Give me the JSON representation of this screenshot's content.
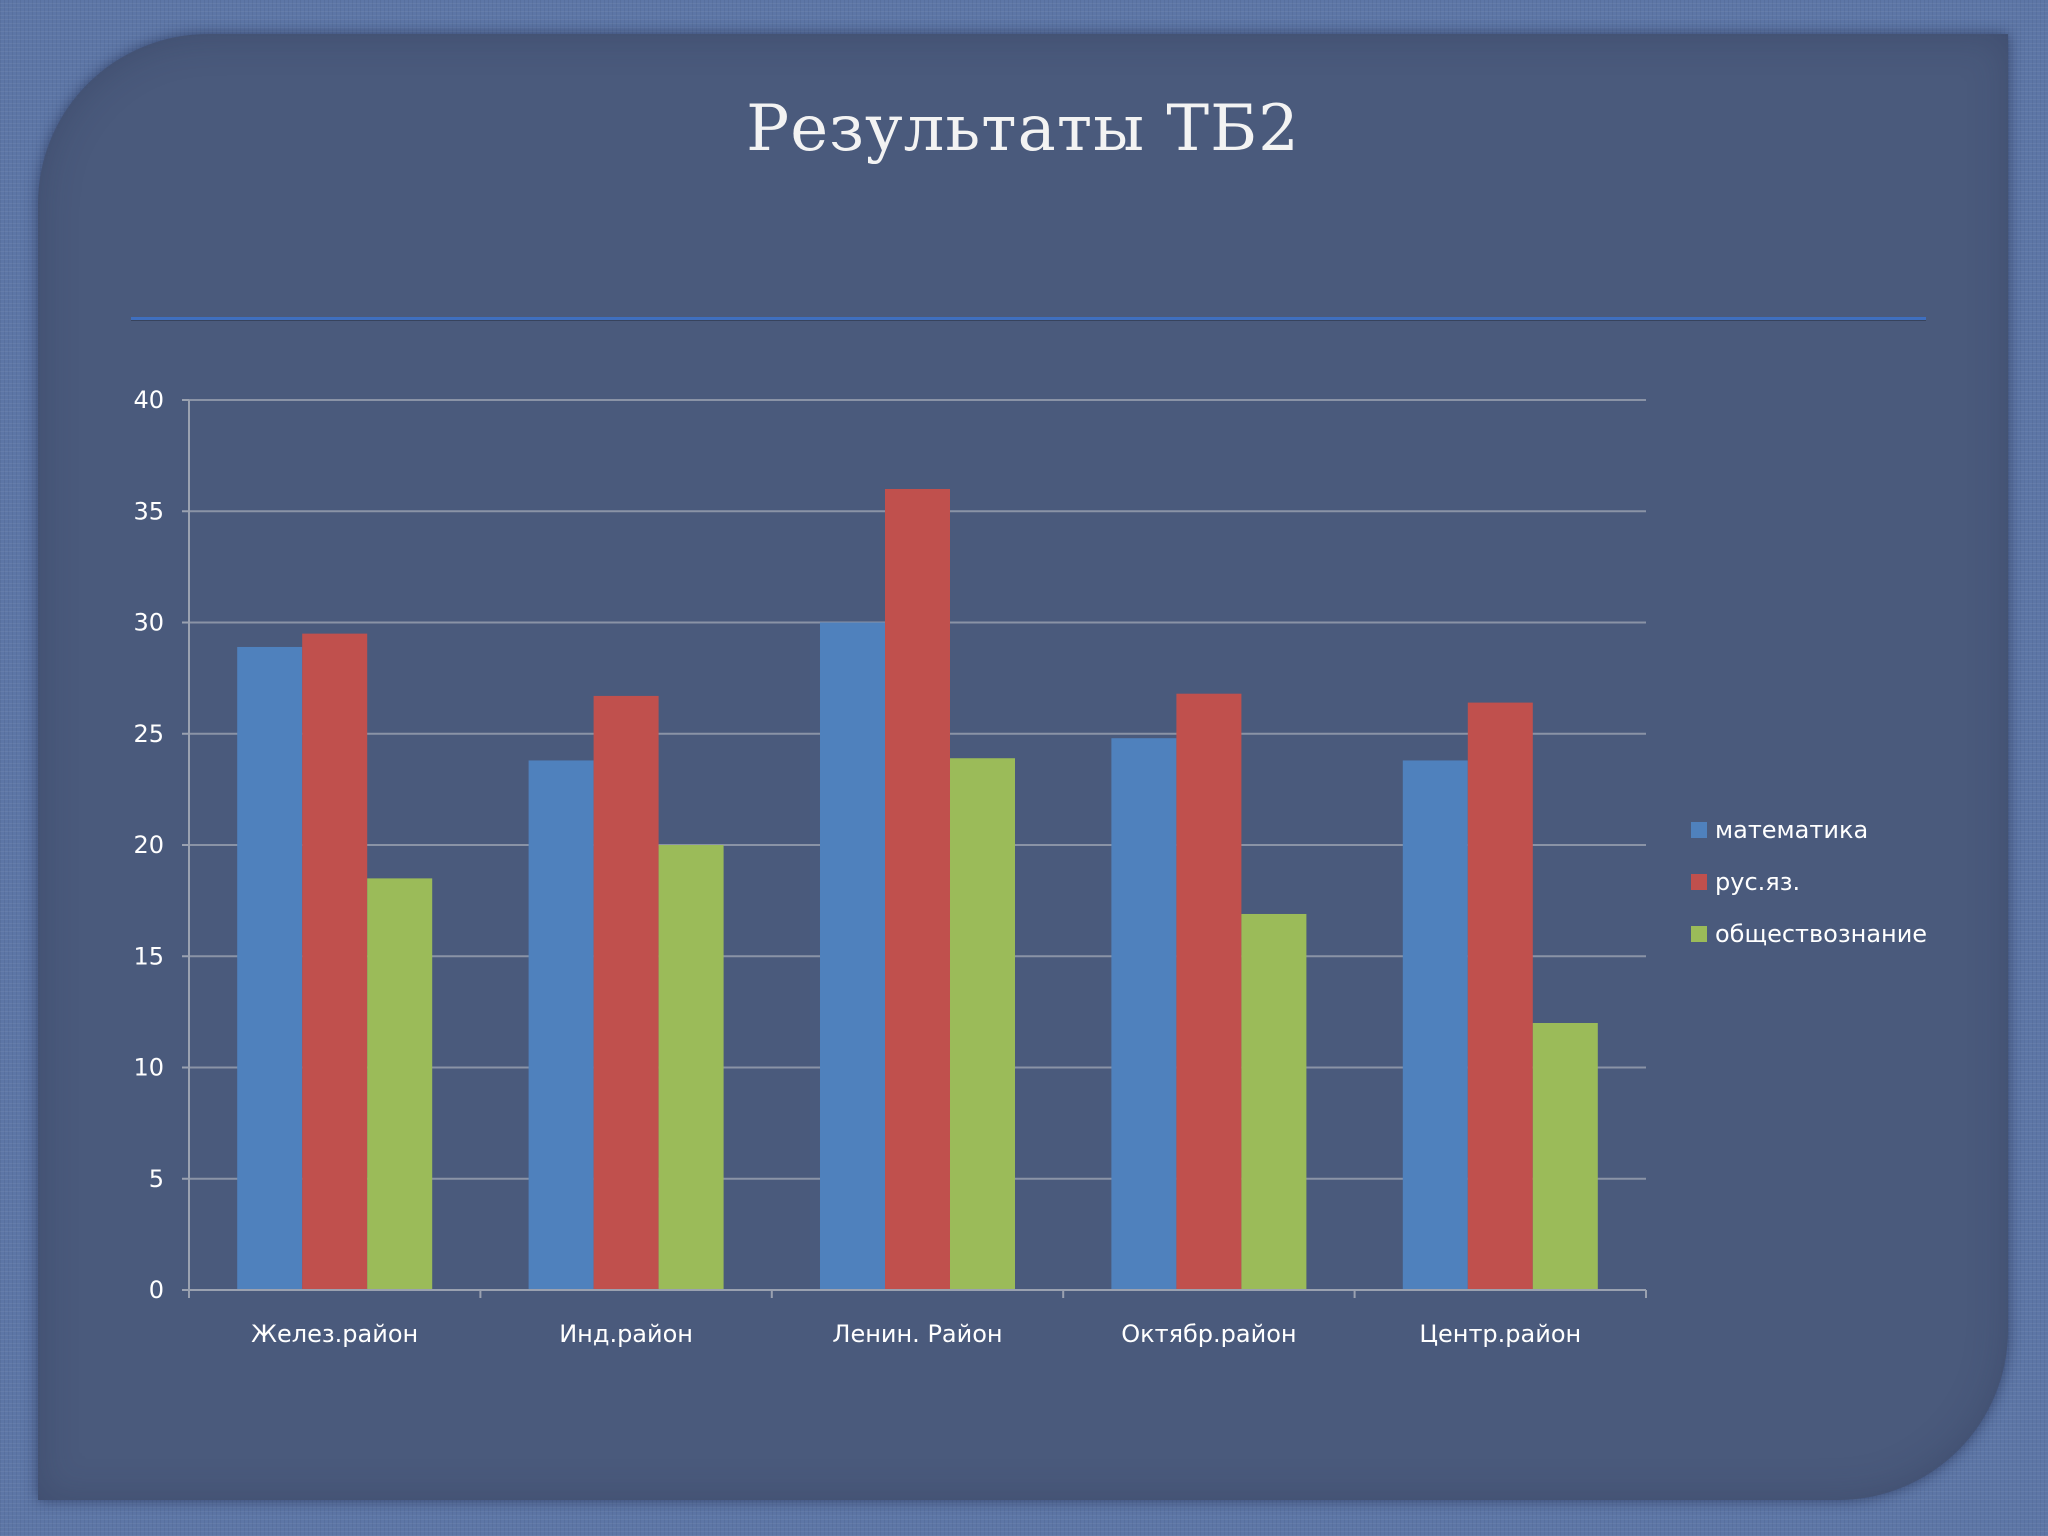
{
  "slide": {
    "title": "Результаты ТБ2"
  },
  "chart_data": {
    "type": "bar",
    "categories": [
      "Желез.район",
      "Инд.район",
      "Ленин. Район",
      "Октябр.район",
      "Центр.район"
    ],
    "series": [
      {
        "name": "математика",
        "color": "#4f81bd",
        "values": [
          28.9,
          23.8,
          30,
          24.8,
          23.8
        ]
      },
      {
        "name": "рус.яз.",
        "color": "#c0504d",
        "values": [
          29.5,
          26.7,
          36,
          26.8,
          26.4
        ]
      },
      {
        "name": "обществознание",
        "color": "#9bbb59",
        "values": [
          18.5,
          20,
          23.9,
          16.9,
          12
        ]
      }
    ],
    "yticks": [
      "0",
      "5",
      "10",
      "15",
      "20",
      "25",
      "30",
      "35",
      "40"
    ],
    "ylim": [
      0,
      40
    ],
    "grid": true,
    "legend_position": "right"
  }
}
